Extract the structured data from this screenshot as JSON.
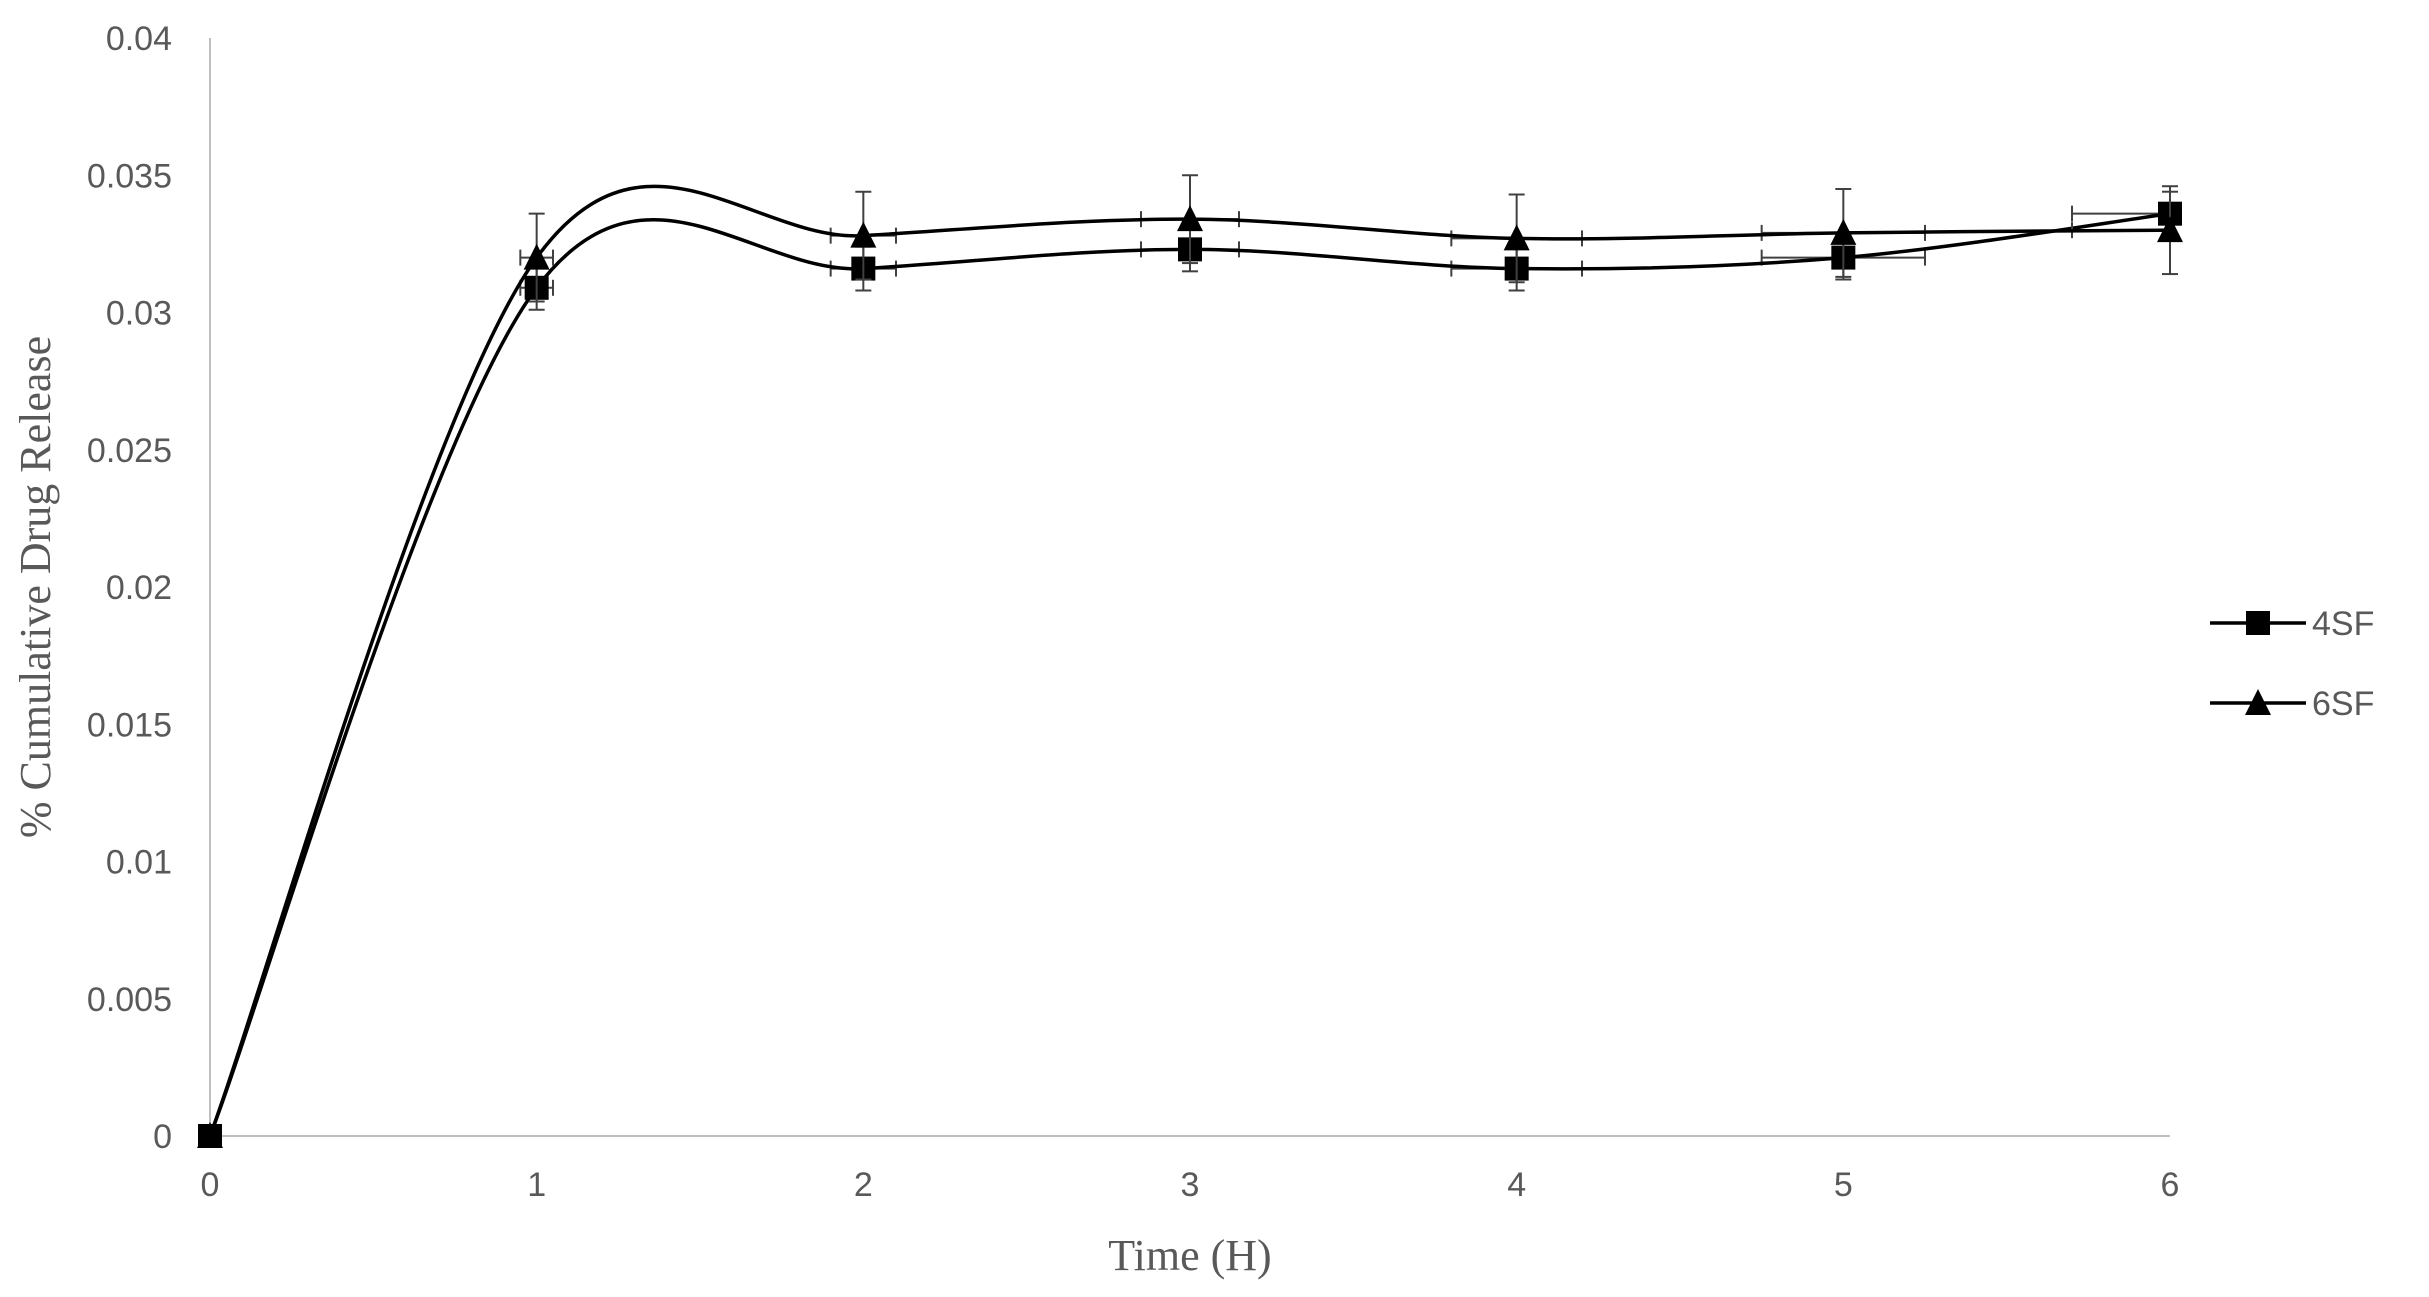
{
  "chart_data": {
    "type": "line",
    "title": "",
    "xlabel": "Time (H)",
    "ylabel": "% Cumulative Drug Release",
    "x": [
      0,
      1,
      2,
      3,
      4,
      5,
      6
    ],
    "x_ticks": [
      "0",
      "1",
      "2",
      "3",
      "4",
      "5",
      "6"
    ],
    "xlim": [
      0,
      6
    ],
    "ylim": [
      0,
      0.04
    ],
    "y_ticks": [
      "0",
      "0.005",
      "0.01",
      "0.015",
      "0.02",
      "0.025",
      "0.03",
      "0.035",
      "0.04"
    ],
    "grid": false,
    "smooth": true,
    "legend_position": "right",
    "series": [
      {
        "name": "4SF",
        "marker": "square",
        "color": "#000000",
        "values": [
          0,
          0.0309,
          0.0316,
          0.0323,
          0.0316,
          0.032,
          0.0336
        ],
        "y_error": [
          0,
          0.0008,
          0.0008,
          0.0008,
          0.0008,
          0.0008,
          0.0008
        ],
        "x_error": [
          0,
          0.05,
          0.1,
          0.15,
          0.2,
          0.25,
          0.3
        ]
      },
      {
        "name": "6SF",
        "marker": "triangle",
        "color": "#000000",
        "values": [
          0,
          0.032,
          0.0328,
          0.0334,
          0.0327,
          0.0329,
          0.033
        ],
        "y_error": [
          0,
          0.0016,
          0.0016,
          0.0016,
          0.0016,
          0.0016,
          0.0016
        ],
        "x_error": [
          0,
          0.05,
          0.1,
          0.15,
          0.2,
          0.25,
          0.3
        ]
      }
    ]
  }
}
